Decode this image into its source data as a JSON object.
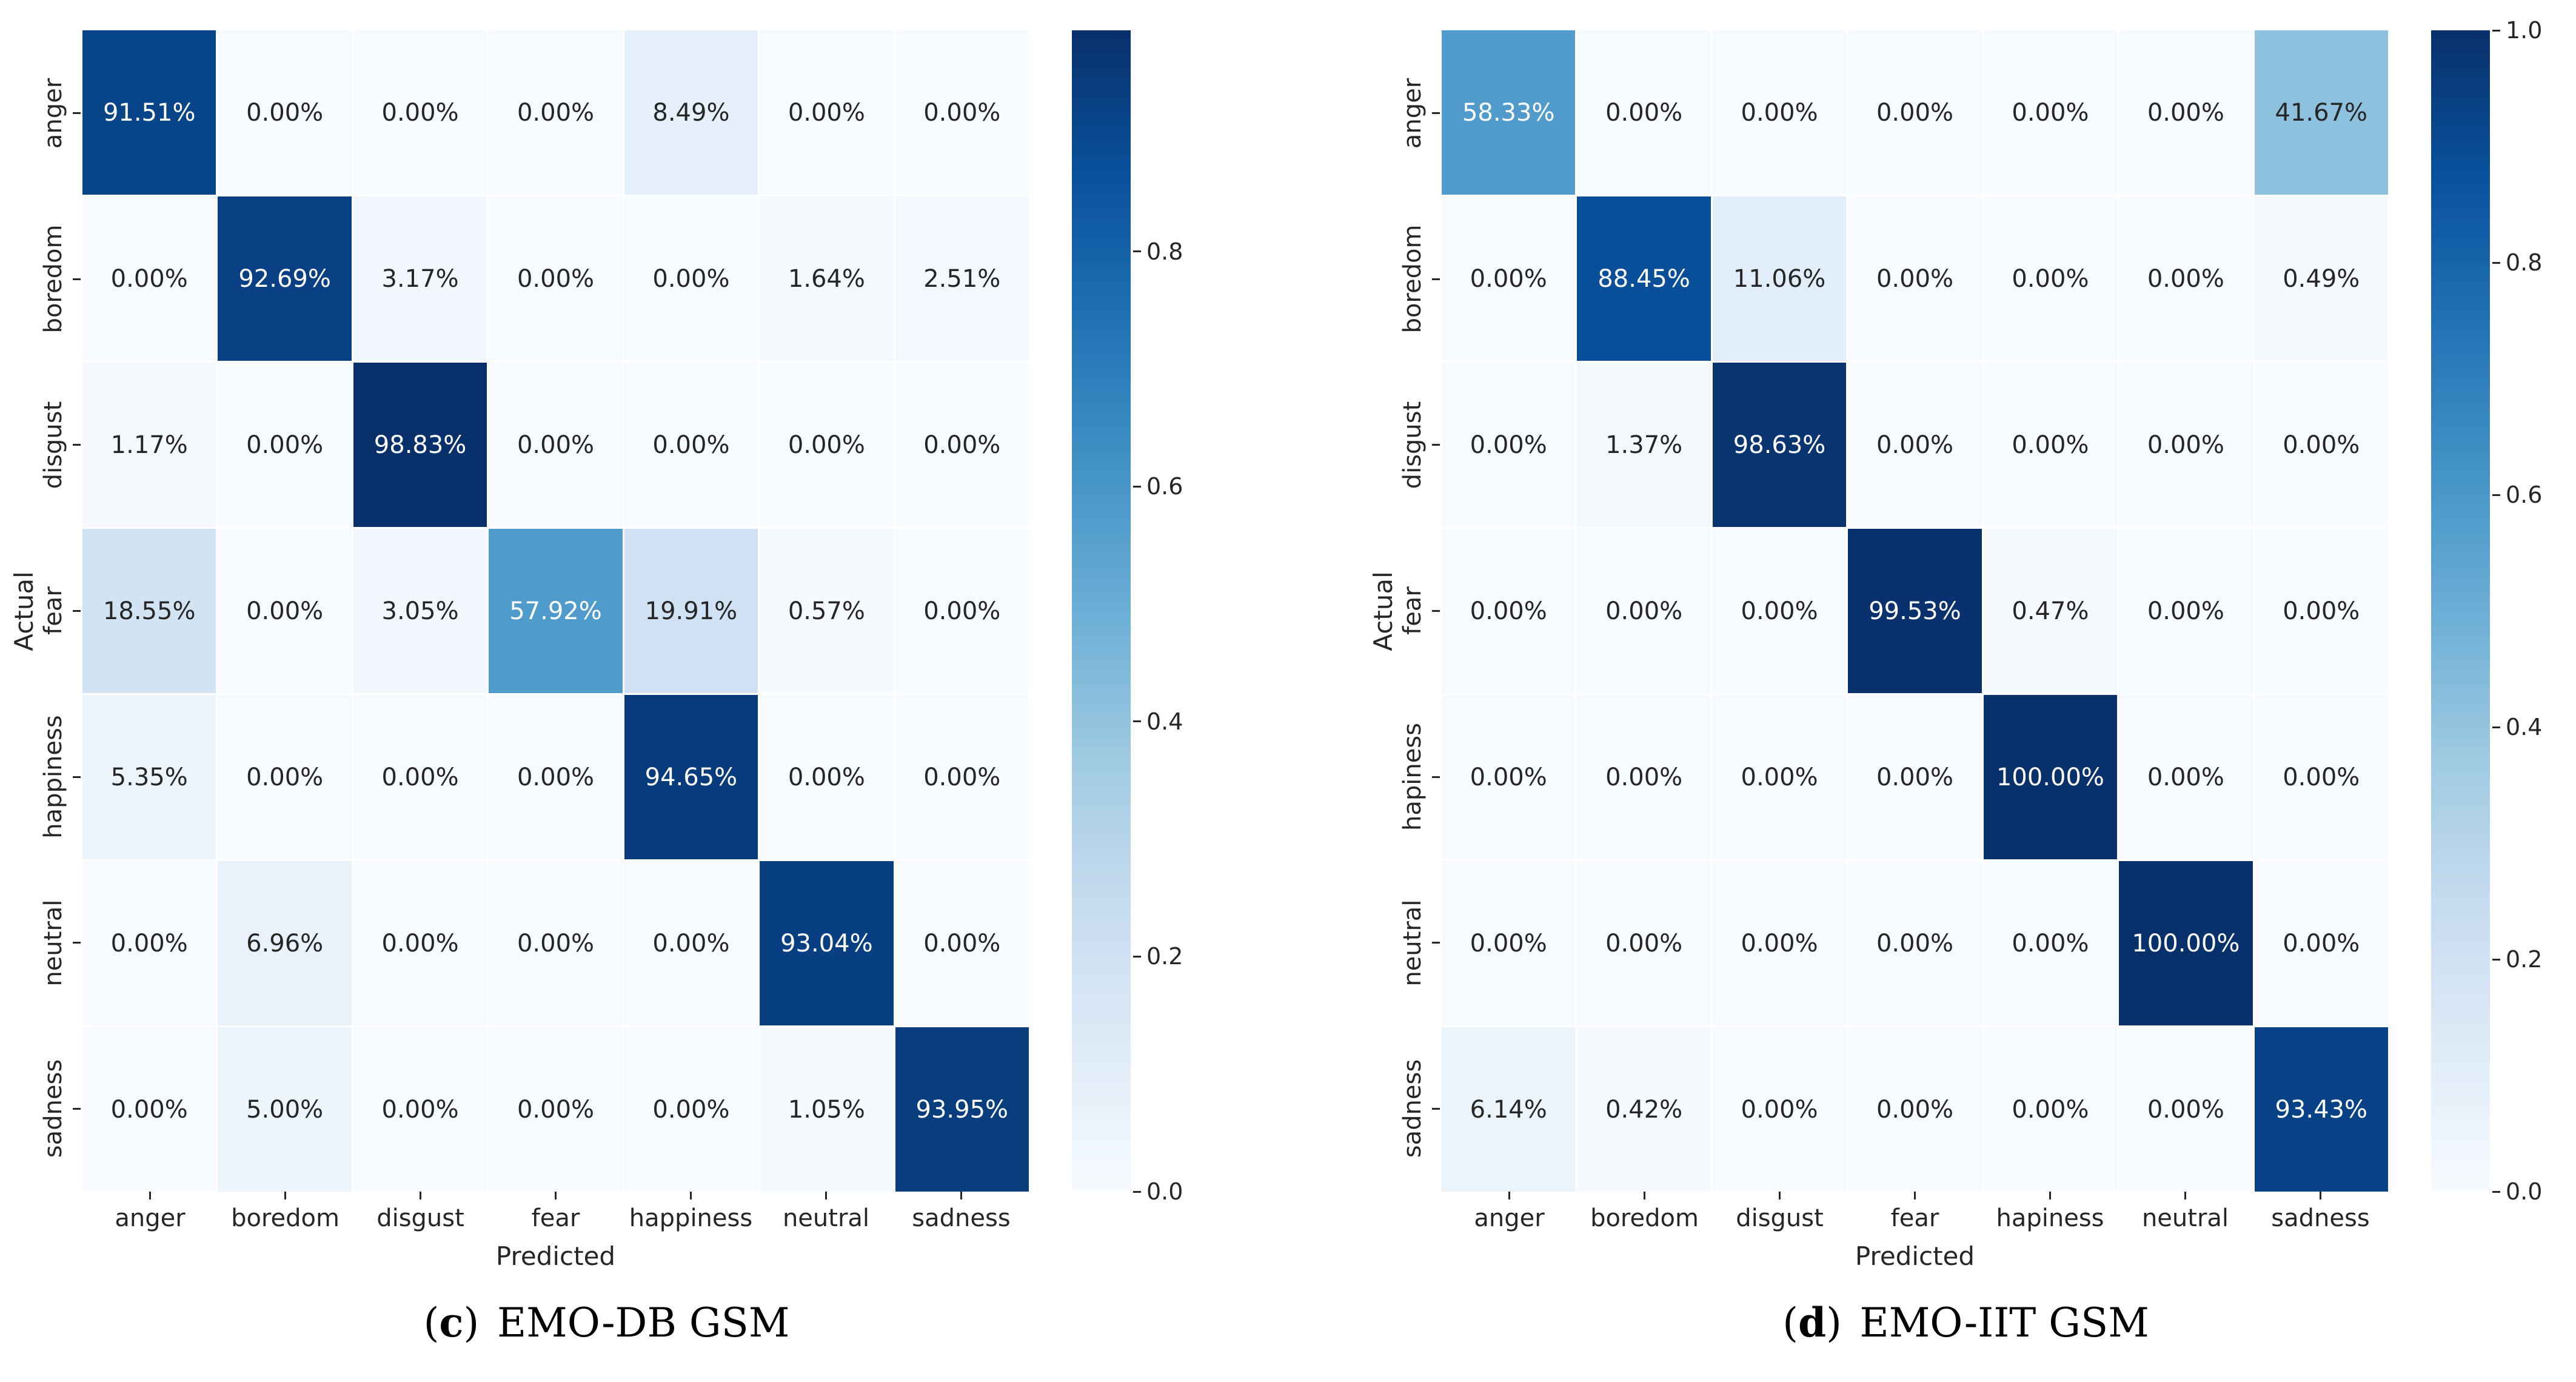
{
  "chart_data": [
    {
      "type": "heatmap",
      "panel": "c",
      "caption": {
        "open": "(",
        "letter": "c",
        "close": ")",
        "text": "EMO-DB GSM"
      },
      "xlabel": "Predicted",
      "ylabel": "Actual",
      "x_categories": [
        "anger",
        "boredom",
        "disgust",
        "fear",
        "happiness",
        "neutral",
        "sadness"
      ],
      "y_categories": [
        "anger",
        "boredom",
        "disgust",
        "fear",
        "happiness",
        "neutral",
        "sadness"
      ],
      "values_percent": [
        [
          91.51,
          0.0,
          0.0,
          0.0,
          8.49,
          0.0,
          0.0
        ],
        [
          0.0,
          92.69,
          3.17,
          0.0,
          0.0,
          1.64,
          2.51
        ],
        [
          1.17,
          0.0,
          98.83,
          0.0,
          0.0,
          0.0,
          0.0
        ],
        [
          18.55,
          0.0,
          3.05,
          57.92,
          19.91,
          0.57,
          0.0
        ],
        [
          5.35,
          0.0,
          0.0,
          0.0,
          94.65,
          0.0,
          0.0
        ],
        [
          0.0,
          6.96,
          0.0,
          0.0,
          0.0,
          93.04,
          0.0
        ],
        [
          0.0,
          5.0,
          0.0,
          0.0,
          0.0,
          1.05,
          93.95
        ]
      ],
      "cell_label_format": "%.2f%%",
      "colormap": "Blues",
      "grid": false,
      "colorbar": {
        "position": "right",
        "vmin": 0.0,
        "vmax": 0.9883,
        "tick_labels": [
          0.8,
          0.6,
          0.4,
          0.2,
          0.0
        ]
      }
    },
    {
      "type": "heatmap",
      "panel": "d",
      "caption": {
        "open": "(",
        "letter": "d",
        "close": ")",
        "text": "EMO-IIT GSM"
      },
      "xlabel": "Predicted",
      "ylabel": "Actual",
      "x_categories": [
        "anger",
        "boredom",
        "disgust",
        "fear",
        "hapiness",
        "neutral",
        "sadness"
      ],
      "y_categories": [
        "anger",
        "boredom",
        "disgust",
        "fear",
        "hapiness",
        "neutral",
        "sadness"
      ],
      "values_percent": [
        [
          58.33,
          0.0,
          0.0,
          0.0,
          0.0,
          0.0,
          41.67
        ],
        [
          0.0,
          88.45,
          11.06,
          0.0,
          0.0,
          0.0,
          0.49
        ],
        [
          0.0,
          1.37,
          98.63,
          0.0,
          0.0,
          0.0,
          0.0
        ],
        [
          0.0,
          0.0,
          0.0,
          99.53,
          0.47,
          0.0,
          0.0
        ],
        [
          0.0,
          0.0,
          0.0,
          0.0,
          100.0,
          0.0,
          0.0
        ],
        [
          0.0,
          0.0,
          0.0,
          0.0,
          0.0,
          100.0,
          0.0
        ],
        [
          6.14,
          0.42,
          0.0,
          0.0,
          0.0,
          0.0,
          93.43
        ]
      ],
      "cell_label_format": "%.2f%%",
      "colormap": "Blues",
      "grid": false,
      "colorbar": {
        "position": "right",
        "vmin": 0.0,
        "vmax": 1.0,
        "tick_labels": [
          1.0,
          0.8,
          0.6,
          0.4,
          0.2,
          0.0
        ]
      }
    }
  ],
  "theme": {
    "background": "#ffffff",
    "colormap_blues_anchors": [
      "#f7fbff",
      "#deebf7",
      "#c6dbef",
      "#9ecae1",
      "#6baed6",
      "#4292c6",
      "#2171b5",
      "#08519c",
      "#08306b"
    ],
    "annotation_text_dark": "#262626",
    "annotation_text_light": "#ffffff"
  }
}
